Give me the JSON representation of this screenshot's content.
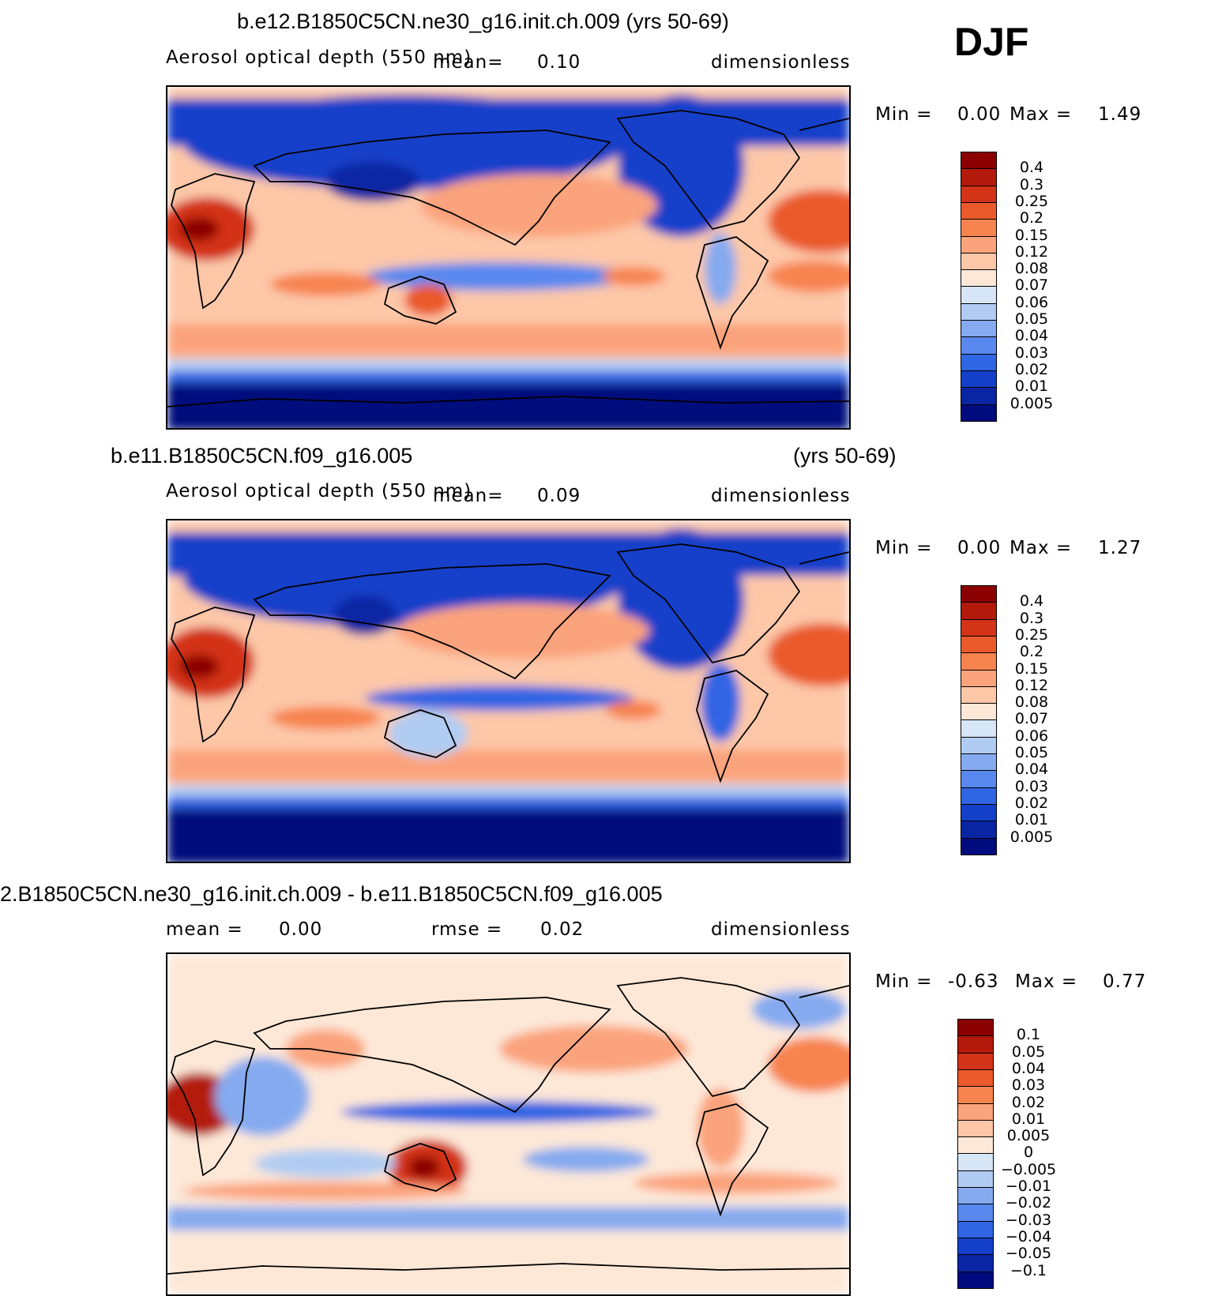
{
  "season": "DJF",
  "panels": [
    {
      "title_left": "b.e12.B1850C5CN.ne30_g16.init.ch.009 (yrs 50-69)",
      "title_right": "",
      "variable": "Aerosol optical depth (550 nm)",
      "mean_label": "mean=",
      "mean_value": "0.10",
      "units": "dimensionless",
      "min_label": "Min =",
      "min_value": "0.00",
      "max_label": "Max =",
      "max_value": "1.49",
      "levels": [
        "0.4",
        "0.3",
        "0.25",
        "0.2",
        "0.15",
        "0.12",
        "0.08",
        "0.07",
        "0.06",
        "0.05",
        "0.04",
        "0.03",
        "0.02",
        "0.01",
        "0.005"
      ],
      "colors": [
        "#8b0000",
        "#b31a0c",
        "#d33316",
        "#ea5a2a",
        "#f7834f",
        "#fba37c",
        "#fdc7a8",
        "#fde8d8",
        "#d7e6f7",
        "#b0ccf2",
        "#85aaef",
        "#5988ee",
        "#3065e3",
        "#1440c9",
        "#0a25a3",
        "#000c7d"
      ]
    },
    {
      "title_left": "b.e11.B1850C5CN.f09_g16.005",
      "title_right": "(yrs 50-69)",
      "variable": "Aerosol optical depth (550 nm)",
      "mean_label": "mean=",
      "mean_value": "0.09",
      "units": "dimensionless",
      "min_label": "Min =",
      "min_value": "0.00",
      "max_label": "Max =",
      "max_value": "1.27",
      "levels": [
        "0.4",
        "0.3",
        "0.25",
        "0.2",
        "0.15",
        "0.12",
        "0.08",
        "0.07",
        "0.06",
        "0.05",
        "0.04",
        "0.03",
        "0.02",
        "0.01",
        "0.005"
      ],
      "colors": [
        "#8b0000",
        "#b31a0c",
        "#d33316",
        "#ea5a2a",
        "#f7834f",
        "#fba37c",
        "#fdc7a8",
        "#fde8d8",
        "#d7e6f7",
        "#b0ccf2",
        "#85aaef",
        "#5988ee",
        "#3065e3",
        "#1440c9",
        "#0a25a3",
        "#000c7d"
      ]
    },
    {
      "title_left": "2.B1850C5CN.ne30_g16.init.ch.009 - b.e11.B1850C5CN.f09_g16.005",
      "title_right": "",
      "mean_label": "mean =",
      "mean_value": "0.00",
      "rmse_label": "rmse =",
      "rmse_value": "0.02",
      "units": "dimensionless",
      "min_label": "Min =",
      "min_value": "-0.63",
      "max_label": "Max =",
      "max_value": "0.77",
      "levels": [
        "0.1",
        "0.05",
        "0.04",
        "0.03",
        "0.02",
        "0.01",
        "0.005",
        "0",
        "-0.005",
        "-0.01",
        "-0.02",
        "-0.03",
        "-0.04",
        "-0.05",
        "-0.1"
      ],
      "colors": [
        "#8b0000",
        "#b31a0c",
        "#d33316",
        "#ea5a2a",
        "#f7834f",
        "#fba37c",
        "#fdc7a8",
        "#fde8d8",
        "#d7e6f7",
        "#b0ccf2",
        "#85aaef",
        "#5988ee",
        "#3065e3",
        "#1440c9",
        "#0a25a3",
        "#000c7d"
      ]
    }
  ]
}
